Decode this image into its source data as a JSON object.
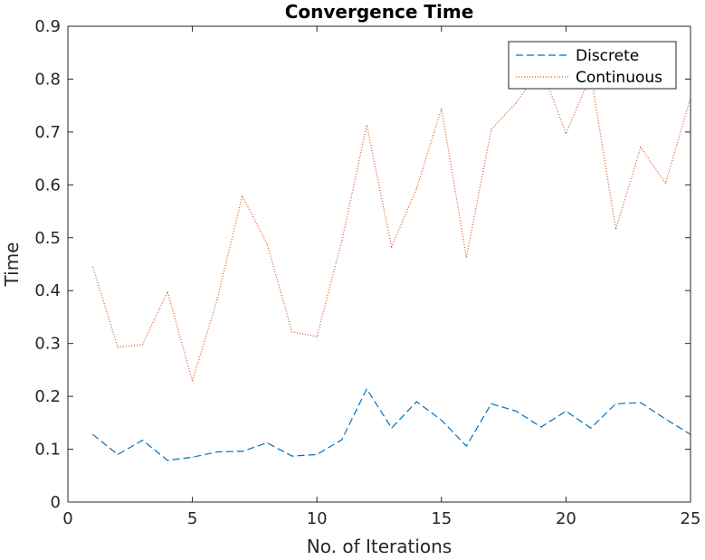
{
  "chart_data": {
    "type": "line",
    "title": "Convergence Time",
    "xlabel": "No. of Iterations",
    "ylabel": "Time",
    "xlim": [
      0,
      25
    ],
    "ylim": [
      0,
      0.9
    ],
    "xticks": [
      0,
      5,
      10,
      15,
      20,
      25
    ],
    "yticks": [
      0,
      0.1,
      0.2,
      0.3,
      0.4,
      0.5,
      0.6,
      0.7,
      0.8,
      0.9
    ],
    "xtick_labels": [
      "0",
      "5",
      "10",
      "15",
      "20",
      "25"
    ],
    "ytick_labels": [
      "0",
      "0.1",
      "0.2",
      "0.3",
      "0.4",
      "0.5",
      "0.6",
      "0.7",
      "0.8",
      "0.9"
    ],
    "grid": false,
    "legend_position": "top-right",
    "x": [
      1,
      2,
      3,
      4,
      5,
      6,
      7,
      8,
      9,
      10,
      11,
      12,
      13,
      14,
      15,
      16,
      17,
      18,
      19,
      20,
      21,
      22,
      23,
      24,
      25
    ],
    "series": [
      {
        "name": "Discrete",
        "color": "#0072BD",
        "style": "dashed",
        "values": [
          0.128,
          0.09,
          0.117,
          0.079,
          0.085,
          0.095,
          0.096,
          0.112,
          0.087,
          0.09,
          0.118,
          0.214,
          0.14,
          0.19,
          0.155,
          0.106,
          0.186,
          0.172,
          0.142,
          0.172,
          0.14,
          0.186,
          0.188,
          0.157,
          0.128
        ]
      },
      {
        "name": "Continuous",
        "color": "#D95319",
        "style": "dotted",
        "values": [
          0.445,
          0.293,
          0.298,
          0.398,
          0.229,
          0.384,
          0.579,
          0.488,
          0.322,
          0.313,
          0.494,
          0.713,
          0.483,
          0.593,
          0.744,
          0.463,
          0.705,
          0.755,
          0.823,
          0.697,
          0.808,
          0.516,
          0.671,
          0.603,
          0.765
        ]
      }
    ]
  }
}
